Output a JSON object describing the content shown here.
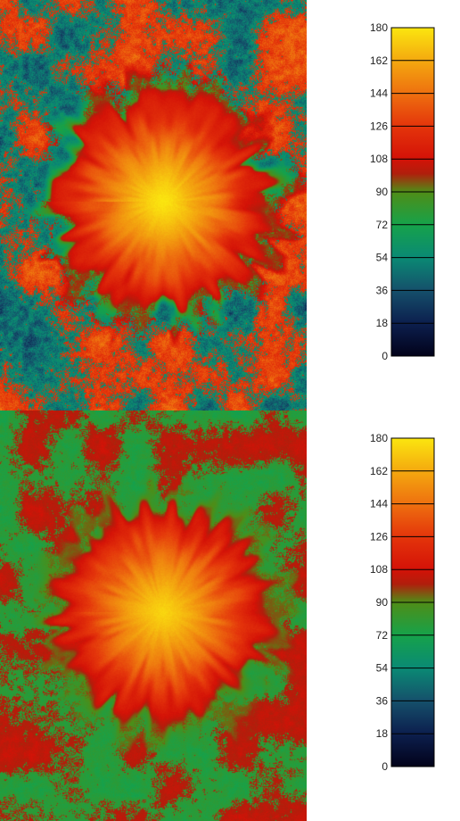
{
  "chart_data": [
    {
      "type": "heatmap",
      "colormap": {
        "min": 0,
        "max": 180,
        "tick_labels": [
          "0",
          "18",
          "36",
          "54",
          "72",
          "90",
          "108",
          "126",
          "144",
          "162",
          "180"
        ],
        "colors": [
          {
            "v": 0,
            "c": "#02021a"
          },
          {
            "v": 18,
            "c": "#0c1f4e"
          },
          {
            "v": 36,
            "c": "#15506b"
          },
          {
            "v": 54,
            "c": "#0a8a74"
          },
          {
            "v": 72,
            "c": "#16a24a"
          },
          {
            "v": 90,
            "c": "#4f8d17"
          },
          {
            "v": 100,
            "c": "#b01e0c"
          },
          {
            "v": 108,
            "c": "#d41207"
          },
          {
            "v": 126,
            "c": "#e4350b"
          },
          {
            "v": 144,
            "c": "#ee700f"
          },
          {
            "v": 162,
            "c": "#f4a90f"
          },
          {
            "v": 180,
            "c": "#fbe60f"
          }
        ]
      },
      "field": {
        "center_value": 180,
        "rim_value": 105,
        "halo_value": 60,
        "background_low": 25,
        "background_high": 150
      }
    },
    {
      "type": "heatmap",
      "colormap": {
        "min": 0,
        "max": 180,
        "tick_labels": [
          "0",
          "18",
          "36",
          "54",
          "72",
          "90",
          "108",
          "126",
          "144",
          "162",
          "180"
        ],
        "colors": [
          {
            "v": 0,
            "c": "#02021a"
          },
          {
            "v": 18,
            "c": "#0c1f4e"
          },
          {
            "v": 36,
            "c": "#15506b"
          },
          {
            "v": 54,
            "c": "#0a8a74"
          },
          {
            "v": 72,
            "c": "#16a24a"
          },
          {
            "v": 90,
            "c": "#4f8d17"
          },
          {
            "v": 100,
            "c": "#b01e0c"
          },
          {
            "v": 108,
            "c": "#d41207"
          },
          {
            "v": 126,
            "c": "#e4350b"
          },
          {
            "v": 144,
            "c": "#ee700f"
          },
          {
            "v": 162,
            "c": "#f4a90f"
          },
          {
            "v": 180,
            "c": "#fbe60f"
          }
        ]
      },
      "field": {
        "center_value": 175,
        "rim_value": 105,
        "halo_value": 80,
        "background_low": 70,
        "background_high": 108
      }
    }
  ]
}
